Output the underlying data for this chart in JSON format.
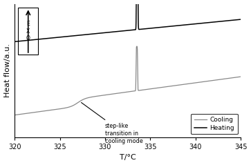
{
  "x_min": 320,
  "x_max": 345,
  "xlabel": "T/°C",
  "ylabel": "Heat flow/a.u.",
  "xticks": [
    320,
    325,
    330,
    335,
    340,
    345
  ],
  "legend_labels": [
    "Cooling",
    "Heating"
  ],
  "cooling_color": "#888888",
  "heating_color": "#000000",
  "annotation_text": "step-like\ntransition in\ncooling mode",
  "background_color": "#ffffff",
  "ylim": [
    -2.5,
    3.5
  ]
}
